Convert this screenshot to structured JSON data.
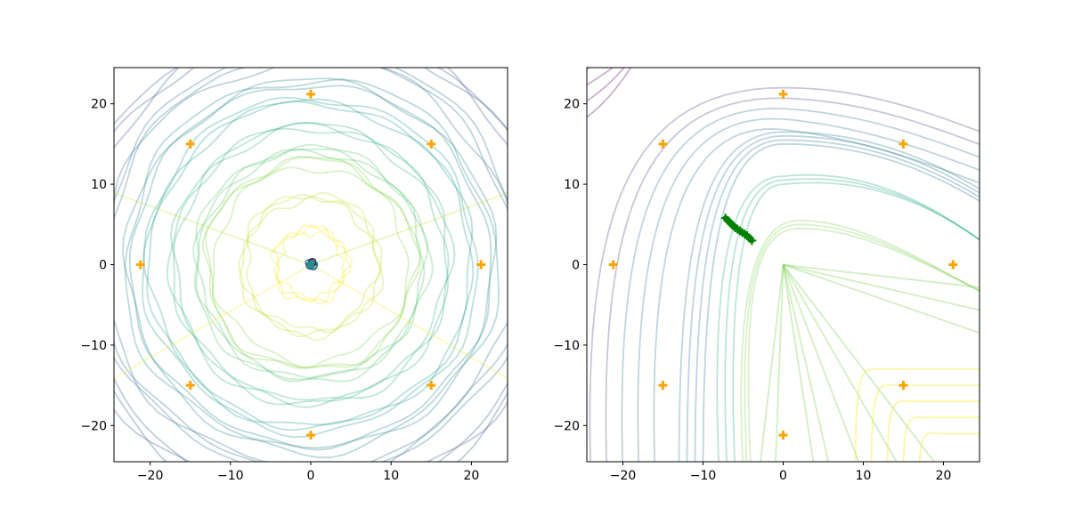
{
  "chart_data": [
    {
      "type": "scatter",
      "title": "",
      "xlabel": "",
      "ylabel": "",
      "xlim": [
        -24.5,
        24.5
      ],
      "ylim": [
        -24.5,
        24.5
      ],
      "xticks": [
        -20,
        -10,
        0,
        10,
        20
      ],
      "yticks": [
        -20,
        -10,
        0,
        10,
        20
      ],
      "xtick_labels": [
        "−20",
        "−10",
        "0",
        "10",
        "20"
      ],
      "ytick_labels": [
        "−20",
        "−10",
        "0",
        "10",
        "20"
      ],
      "grid": false,
      "legend": "none",
      "series": [
        {
          "marker": "plus",
          "color": "#ffa500",
          "x": [
            21.2,
            15.0,
            0.0,
            -15.0,
            -21.2,
            -15.0,
            0.0,
            15.0
          ],
          "y": [
            0.0,
            15.0,
            21.2,
            15.0,
            0.0,
            -15.0,
            -21.2,
            -15.0
          ]
        },
        {
          "marker": "circle",
          "colors": [
            "#440154",
            "#3b528b",
            "#21908c",
            "#5ec962"
          ],
          "x": [
            0.1,
            0.3,
            -0.2,
            0.0,
            0.2,
            -0.1,
            0.4
          ],
          "y": [
            0.1,
            -0.2,
            0.2,
            0.0,
            0.3,
            -0.1,
            0.0
          ]
        },
        {
          "marker": "line",
          "colormap": "viridis",
          "description_shape": "concentric wavy loops around the origin",
          "radii": [
            4.5,
            8.5,
            12.5,
            14.5,
            17.5,
            20.5,
            23.0,
            26.0,
            29.0
          ],
          "colors": [
            "#fde725",
            "#c2df23",
            "#86d549",
            "#52c569",
            "#2ab07f",
            "#1e9b8a",
            "#25858e",
            "#2e6f8e",
            "#3b528b"
          ]
        }
      ]
    },
    {
      "type": "line",
      "title": "",
      "xlabel": "",
      "ylabel": "",
      "xlim": [
        -24.5,
        24.5
      ],
      "ylim": [
        -24.5,
        24.5
      ],
      "xticks": [
        -20,
        -10,
        0,
        10,
        20
      ],
      "yticks": [
        -20,
        -10,
        0,
        10,
        20
      ],
      "xtick_labels": [
        "−20",
        "−10",
        "0",
        "10",
        "20"
      ],
      "ytick_labels": [
        "−20",
        "−10",
        "0",
        "10",
        "20"
      ],
      "grid": false,
      "legend": "none",
      "series": [
        {
          "marker": "plus",
          "color": "#ffa500",
          "x": [
            21.2,
            15.0,
            0.0,
            -15.0,
            -21.2,
            -15.0,
            0.0,
            15.0
          ],
          "y": [
            0.0,
            15.0,
            21.2,
            15.0,
            0.0,
            -15.0,
            -21.2,
            -15.0
          ]
        },
        {
          "marker": "plus",
          "color": "#008000",
          "x": [
            -7.2,
            -6.9,
            -6.6,
            -6.3,
            -6.0,
            -5.7,
            -5.4,
            -5.1,
            -4.8,
            -4.5,
            -4.2,
            -3.9
          ],
          "y": [
            5.8,
            5.5,
            5.2,
            4.9,
            4.6,
            4.4,
            4.2,
            4.0,
            3.8,
            3.6,
            3.3,
            3.0
          ]
        },
        {
          "marker": "line",
          "colormap": "viridis",
          "colors": [
            "#440154",
            "#414487",
            "#2a788e",
            "#22a884",
            "#7ad151",
            "#fde725"
          ]
        }
      ]
    }
  ]
}
